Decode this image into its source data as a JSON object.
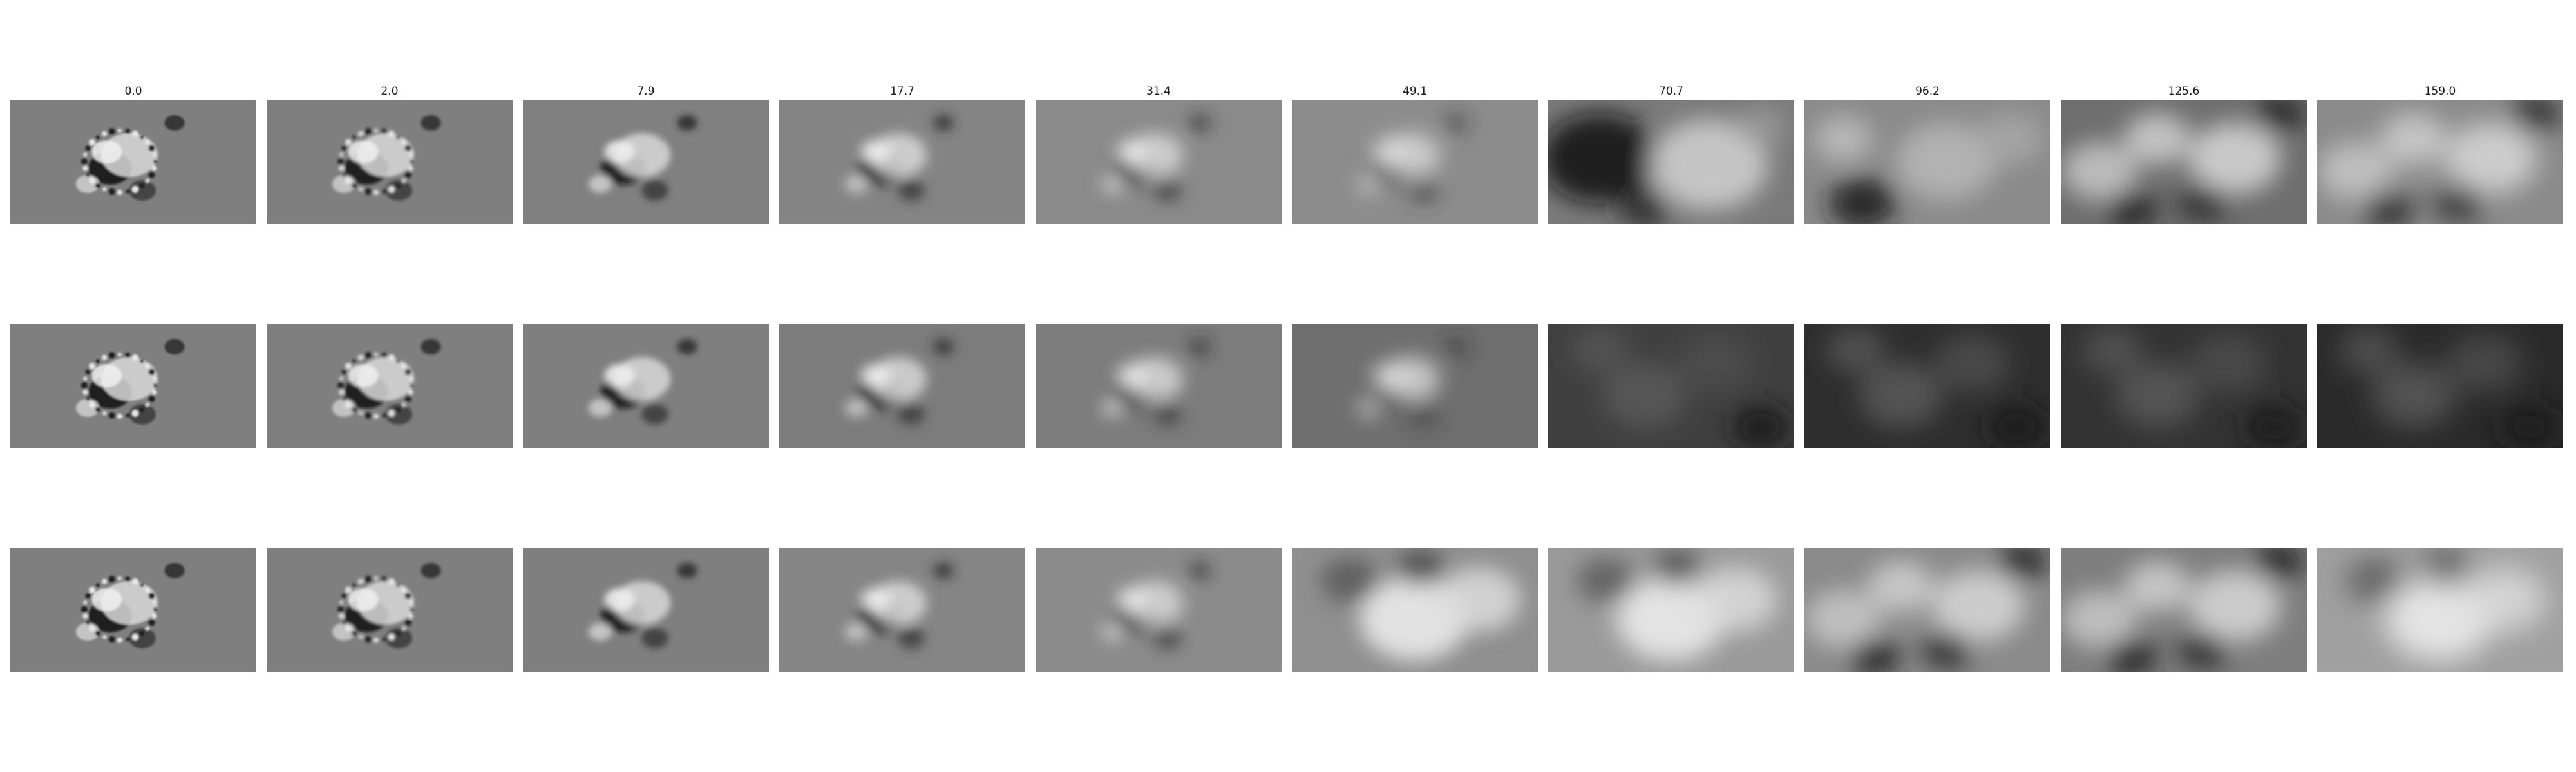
{
  "figure": {
    "column_titles": [
      "0.0",
      "2.0",
      "7.9",
      "17.7",
      "31.4",
      "49.1",
      "70.7",
      "96.2",
      "125.6",
      "159.0"
    ],
    "rows": [
      {
        "panels": [
          {
            "bg": "#7f7f7f",
            "tone": "mid",
            "blur": 1.5
          },
          {
            "bg": "#7f7f7f",
            "tone": "mid",
            "blur": 2.5
          },
          {
            "bg": "#808080",
            "tone": "mid",
            "blur": 5
          },
          {
            "bg": "#848484",
            "tone": "mid",
            "blur": 9
          },
          {
            "bg": "#8a8a8a",
            "tone": "mid",
            "blur": 13
          },
          {
            "bg": "#8c8c8c",
            "tone": "mid",
            "blur": 16
          },
          {
            "bg": "#7a7a7a",
            "tone": "dark-left",
            "blur": 18
          },
          {
            "bg": "#8a8a8a",
            "tone": "mixed",
            "blur": 19
          },
          {
            "bg": "#6e6e6e",
            "tone": "swirl",
            "blur": 18
          },
          {
            "bg": "#8a8a8a",
            "tone": "swirl",
            "blur": 20
          }
        ]
      },
      {
        "panels": [
          {
            "bg": "#7f7f7f",
            "tone": "mid",
            "blur": 1.5
          },
          {
            "bg": "#7f7f7f",
            "tone": "mid",
            "blur": 2.5
          },
          {
            "bg": "#7f7f7f",
            "tone": "mid",
            "blur": 5
          },
          {
            "bg": "#7c7c7c",
            "tone": "mid",
            "blur": 9
          },
          {
            "bg": "#7c7c7c",
            "tone": "mid",
            "blur": 13
          },
          {
            "bg": "#6e6e6e",
            "tone": "mid",
            "blur": 16
          },
          {
            "bg": "#404040",
            "tone": "dark",
            "blur": 18
          },
          {
            "bg": "#2e2e2e",
            "tone": "dark",
            "blur": 19
          },
          {
            "bg": "#333333",
            "tone": "dark",
            "blur": 20
          },
          {
            "bg": "#2a2a2a",
            "tone": "dark",
            "blur": 22
          }
        ]
      },
      {
        "panels": [
          {
            "bg": "#7f7f7f",
            "tone": "mid",
            "blur": 1.5
          },
          {
            "bg": "#7f7f7f",
            "tone": "mid",
            "blur": 2.5
          },
          {
            "bg": "#7f7f7f",
            "tone": "mid",
            "blur": 5
          },
          {
            "bg": "#858585",
            "tone": "mid",
            "blur": 9
          },
          {
            "bg": "#8b8b8b",
            "tone": "mid",
            "blur": 13
          },
          {
            "bg": "#8f8f8f",
            "tone": "bright",
            "blur": 16
          },
          {
            "bg": "#9a9a9a",
            "tone": "bright",
            "blur": 18
          },
          {
            "bg": "#8a8a8a",
            "tone": "swirl",
            "blur": 18
          },
          {
            "bg": "#7e7e7e",
            "tone": "swirl",
            "blur": 18
          },
          {
            "bg": "#a0a0a0",
            "tone": "bright",
            "blur": 22
          }
        ]
      }
    ]
  }
}
